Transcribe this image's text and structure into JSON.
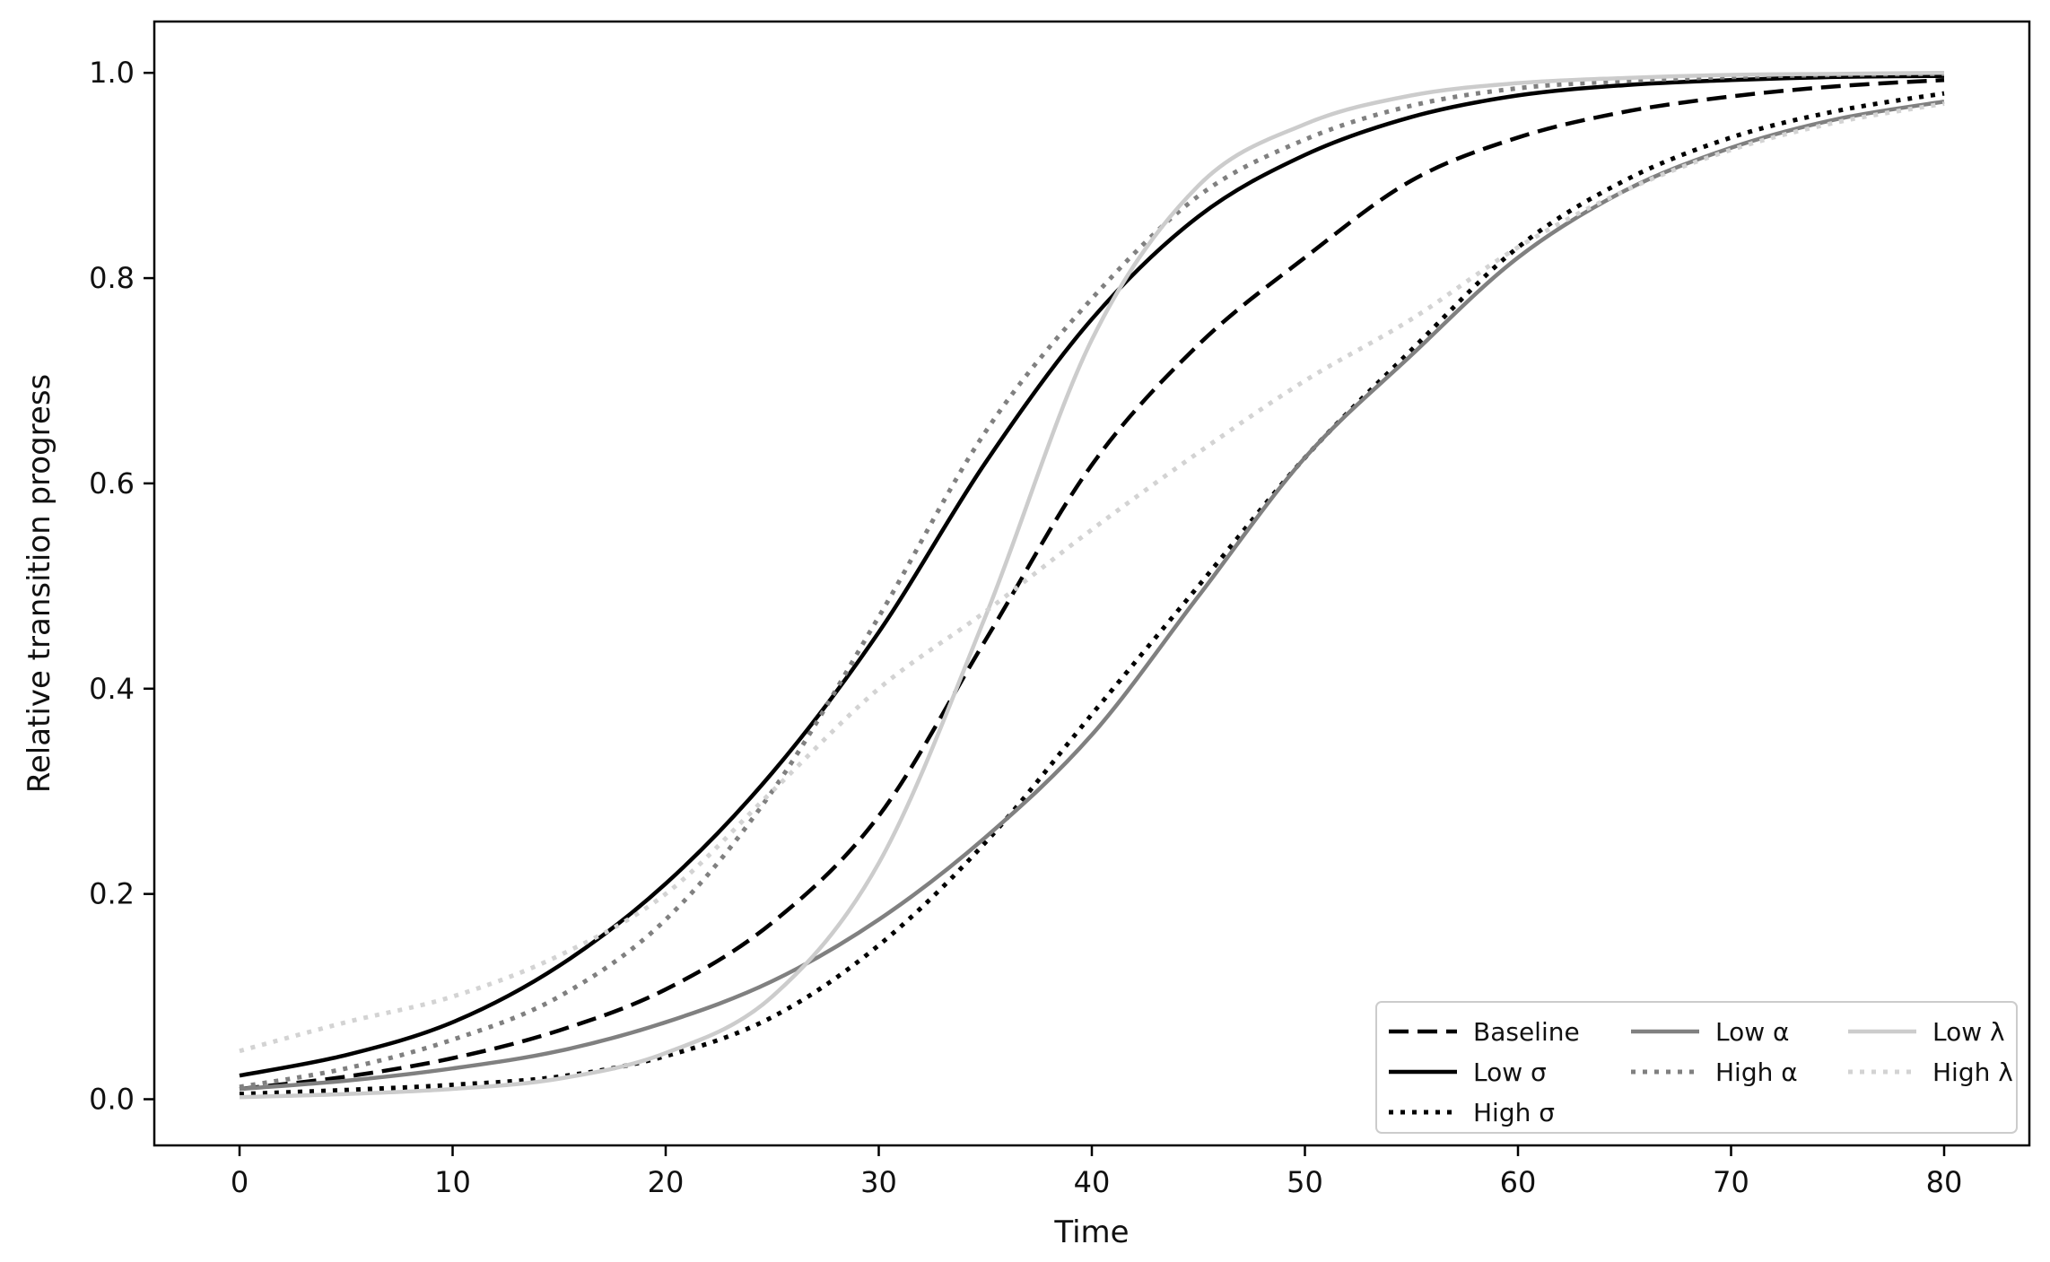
{
  "chart_data": {
    "type": "line",
    "xlabel": "Time",
    "ylabel": "Relative transition progress",
    "xlim": [
      -4,
      84
    ],
    "ylim": [
      -0.045,
      1.05
    ],
    "xticks": [
      0,
      10,
      20,
      30,
      40,
      50,
      60,
      70,
      80
    ],
    "yticks": [
      0.0,
      0.2,
      0.4,
      0.6,
      0.8,
      1.0
    ],
    "xtick_labels": [
      "0",
      "10",
      "20",
      "30",
      "40",
      "50",
      "60",
      "70",
      "80"
    ],
    "ytick_labels": [
      "0.0",
      "0.2",
      "0.4",
      "0.6",
      "0.8",
      "1.0"
    ],
    "grid": false,
    "legend": {
      "position": "lower right",
      "columns": 3
    },
    "x": [
      0,
      5,
      10,
      15,
      20,
      25,
      30,
      35,
      40,
      45,
      50,
      55,
      60,
      65,
      70,
      75,
      80
    ],
    "series": [
      {
        "name": "Baseline",
        "color": "#000000",
        "style": "dashed",
        "values": [
          0.01,
          0.022,
          0.04,
          0.067,
          0.107,
          0.172,
          0.276,
          0.447,
          0.618,
          0.735,
          0.82,
          0.895,
          0.937,
          0.962,
          0.977,
          0.987,
          0.993
        ]
      },
      {
        "name": "Low σ",
        "color": "#000000",
        "style": "solid",
        "values": [
          0.023,
          0.043,
          0.075,
          0.13,
          0.21,
          0.318,
          0.455,
          0.62,
          0.76,
          0.86,
          0.92,
          0.957,
          0.978,
          0.988,
          0.993,
          0.996,
          0.997
        ]
      },
      {
        "name": "High σ",
        "color": "#000000",
        "style": "dotted",
        "values": [
          0.005,
          0.009,
          0.014,
          0.022,
          0.042,
          0.08,
          0.15,
          0.25,
          0.375,
          0.5,
          0.625,
          0.73,
          0.83,
          0.895,
          0.937,
          0.963,
          0.98
        ]
      },
      {
        "name": "Low α",
        "color": "#808080",
        "style": "solid",
        "values": [
          0.01,
          0.018,
          0.03,
          0.047,
          0.075,
          0.115,
          0.175,
          0.255,
          0.355,
          0.49,
          0.625,
          0.725,
          0.82,
          0.885,
          0.927,
          0.955,
          0.972
        ]
      },
      {
        "name": "High α",
        "color": "#808080",
        "style": "dotted",
        "values": [
          0.012,
          0.03,
          0.058,
          0.1,
          0.175,
          0.3,
          0.47,
          0.65,
          0.78,
          0.88,
          0.935,
          0.968,
          0.985,
          0.992,
          0.996,
          0.998,
          0.999
        ]
      },
      {
        "name": "Low λ",
        "color": "#cccccc",
        "style": "solid",
        "values": [
          0.002,
          0.005,
          0.01,
          0.02,
          0.045,
          0.1,
          0.23,
          0.47,
          0.74,
          0.89,
          0.95,
          0.978,
          0.99,
          0.995,
          0.998,
          0.999,
          1.0
        ]
      },
      {
        "name": "High λ",
        "color": "#d3d3d3",
        "style": "dotted",
        "values": [
          0.047,
          0.075,
          0.1,
          0.14,
          0.2,
          0.3,
          0.4,
          0.475,
          0.555,
          0.63,
          0.7,
          0.76,
          0.83,
          0.885,
          0.925,
          0.952,
          0.97
        ]
      }
    ]
  }
}
